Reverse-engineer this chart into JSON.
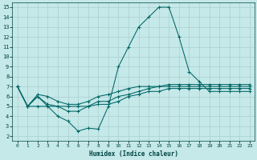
{
  "xlabel": "Humidex (Indice chaleur)",
  "bg_color": "#c5e8e8",
  "grid_color": "#aacfcf",
  "line_color": "#006666",
  "xlim": [
    -0.5,
    23.5
  ],
  "ylim": [
    1.5,
    15.5
  ],
  "yticks": [
    2,
    3,
    4,
    5,
    6,
    7,
    8,
    9,
    10,
    11,
    12,
    13,
    14,
    15
  ],
  "xticks": [
    0,
    1,
    2,
    3,
    4,
    5,
    6,
    7,
    8,
    9,
    10,
    11,
    12,
    13,
    14,
    15,
    16,
    17,
    18,
    19,
    20,
    21,
    22,
    23
  ],
  "curves": [
    {
      "x": [
        0,
        1,
        2,
        3,
        4,
        5,
        6,
        7,
        8,
        9,
        10,
        11,
        12,
        13,
        14,
        15,
        16,
        17,
        18,
        19,
        20,
        21,
        22,
        23
      ],
      "y": [
        7,
        5,
        5,
        5,
        4,
        3.5,
        2.5,
        2.8,
        2.7,
        5,
        9,
        11,
        13,
        14,
        15,
        15,
        12,
        8.5,
        7.5,
        6.5,
        6.5,
        6.5,
        6.5,
        6.5
      ]
    },
    {
      "x": [
        0,
        1,
        2,
        3,
        4,
        5,
        6,
        7,
        8,
        9,
        10,
        11,
        12,
        13,
        14,
        15,
        16,
        17,
        18,
        19,
        20,
        21,
        22,
        23
      ],
      "y": [
        7,
        5,
        6.2,
        6,
        5.5,
        5.2,
        5.2,
        5.5,
        6,
        6.2,
        6.5,
        6.8,
        7,
        7,
        7,
        7.2,
        7.2,
        7.2,
        7.2,
        7.2,
        7.2,
        7.2,
        7.2,
        7.2
      ]
    },
    {
      "x": [
        0,
        1,
        2,
        3,
        4,
        5,
        6,
        7,
        8,
        9,
        10,
        11,
        12,
        13,
        14,
        15,
        16,
        17,
        18,
        19,
        20,
        21,
        22,
        23
      ],
      "y": [
        7,
        5,
        6,
        5.2,
        5,
        5,
        5,
        5,
        5.2,
        5.2,
        5.5,
        6,
        6.2,
        6.5,
        6.5,
        6.8,
        6.8,
        6.8,
        6.8,
        6.8,
        6.8,
        6.8,
        6.8,
        6.8
      ]
    },
    {
      "x": [
        0,
        1,
        2,
        3,
        4,
        5,
        6,
        7,
        8,
        9,
        10,
        11,
        12,
        13,
        14,
        15,
        16,
        17,
        18,
        19,
        20,
        21,
        22,
        23
      ],
      "y": [
        7,
        5,
        6,
        5,
        5,
        4.5,
        4.5,
        5,
        5.5,
        5.5,
        6,
        6.2,
        6.5,
        6.8,
        7,
        7,
        7,
        7,
        7,
        7,
        7,
        7,
        7,
        7
      ]
    }
  ]
}
